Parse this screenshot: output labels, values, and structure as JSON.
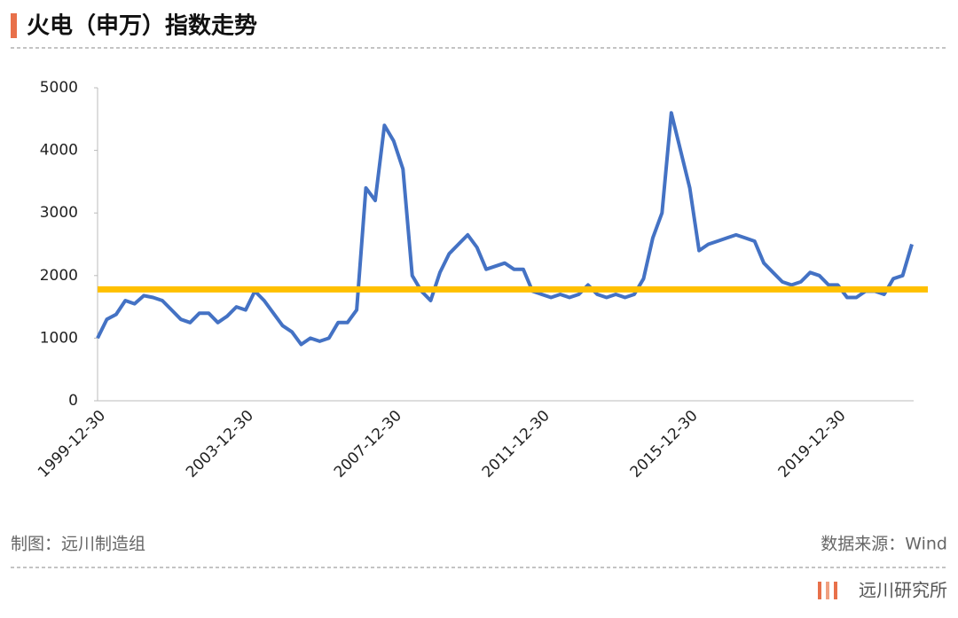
{
  "header": {
    "title": "火电（申万）指数走势"
  },
  "chart_data": {
    "type": "line",
    "categories": [
      "1999-12-30",
      null,
      null,
      null,
      null,
      null,
      null,
      null,
      null,
      null,
      null,
      null,
      null,
      null,
      null,
      null,
      "2003-12-30",
      null,
      null,
      null,
      null,
      null,
      null,
      null,
      null,
      null,
      null,
      null,
      null,
      null,
      null,
      null,
      "2007-12-30",
      null,
      null,
      null,
      null,
      null,
      null,
      null,
      null,
      null,
      null,
      null,
      null,
      null,
      null,
      null,
      "2011-12-30",
      null,
      null,
      null,
      null,
      null,
      null,
      null,
      null,
      null,
      null,
      null,
      null,
      null,
      null,
      null,
      "2015-12-30",
      null,
      null,
      null,
      null,
      null,
      null,
      null,
      null,
      null,
      null,
      null,
      null,
      null,
      null,
      null,
      "2019-12-30",
      null,
      null,
      null,
      null,
      null,
      null,
      null,
      null
    ],
    "series": [
      {
        "color": "#4472C4",
        "values": [
          1000,
          1300,
          1380,
          1600,
          1550,
          1680,
          1650,
          1600,
          1450,
          1300,
          1250,
          1400,
          1400,
          1250,
          1350,
          1500,
          1450,
          1750,
          1600,
          1400,
          1200,
          1100,
          900,
          1000,
          950,
          1000,
          1250,
          1250,
          1450,
          3400,
          3200,
          4400,
          4150,
          3700,
          2000,
          1750,
          1600,
          2050,
          2350,
          2500,
          2650,
          2450,
          2100,
          2150,
          2200,
          2100,
          2100,
          1750,
          1700,
          1650,
          1700,
          1650,
          1700,
          1850,
          1700,
          1650,
          1700,
          1650,
          1700,
          1950,
          2600,
          3000,
          4600,
          4000,
          3400,
          2400,
          2500,
          2550,
          2600,
          2650,
          2600,
          2550,
          2200,
          2050,
          1900,
          1850,
          1900,
          2050,
          2000,
          1850,
          1850,
          1650,
          1650,
          1750,
          1750,
          1700,
          1950,
          2000,
          2500
        ]
      }
    ],
    "reference_line": {
      "value": 1780,
      "color": "#FFC000"
    },
    "ylim": [
      0,
      5000
    ],
    "yticks": [
      0,
      1000,
      2000,
      3000,
      4000,
      5000
    ]
  },
  "footer": {
    "credit": "制图：远川制造组",
    "source": "数据来源：Wind",
    "brand": "远川研究所"
  }
}
